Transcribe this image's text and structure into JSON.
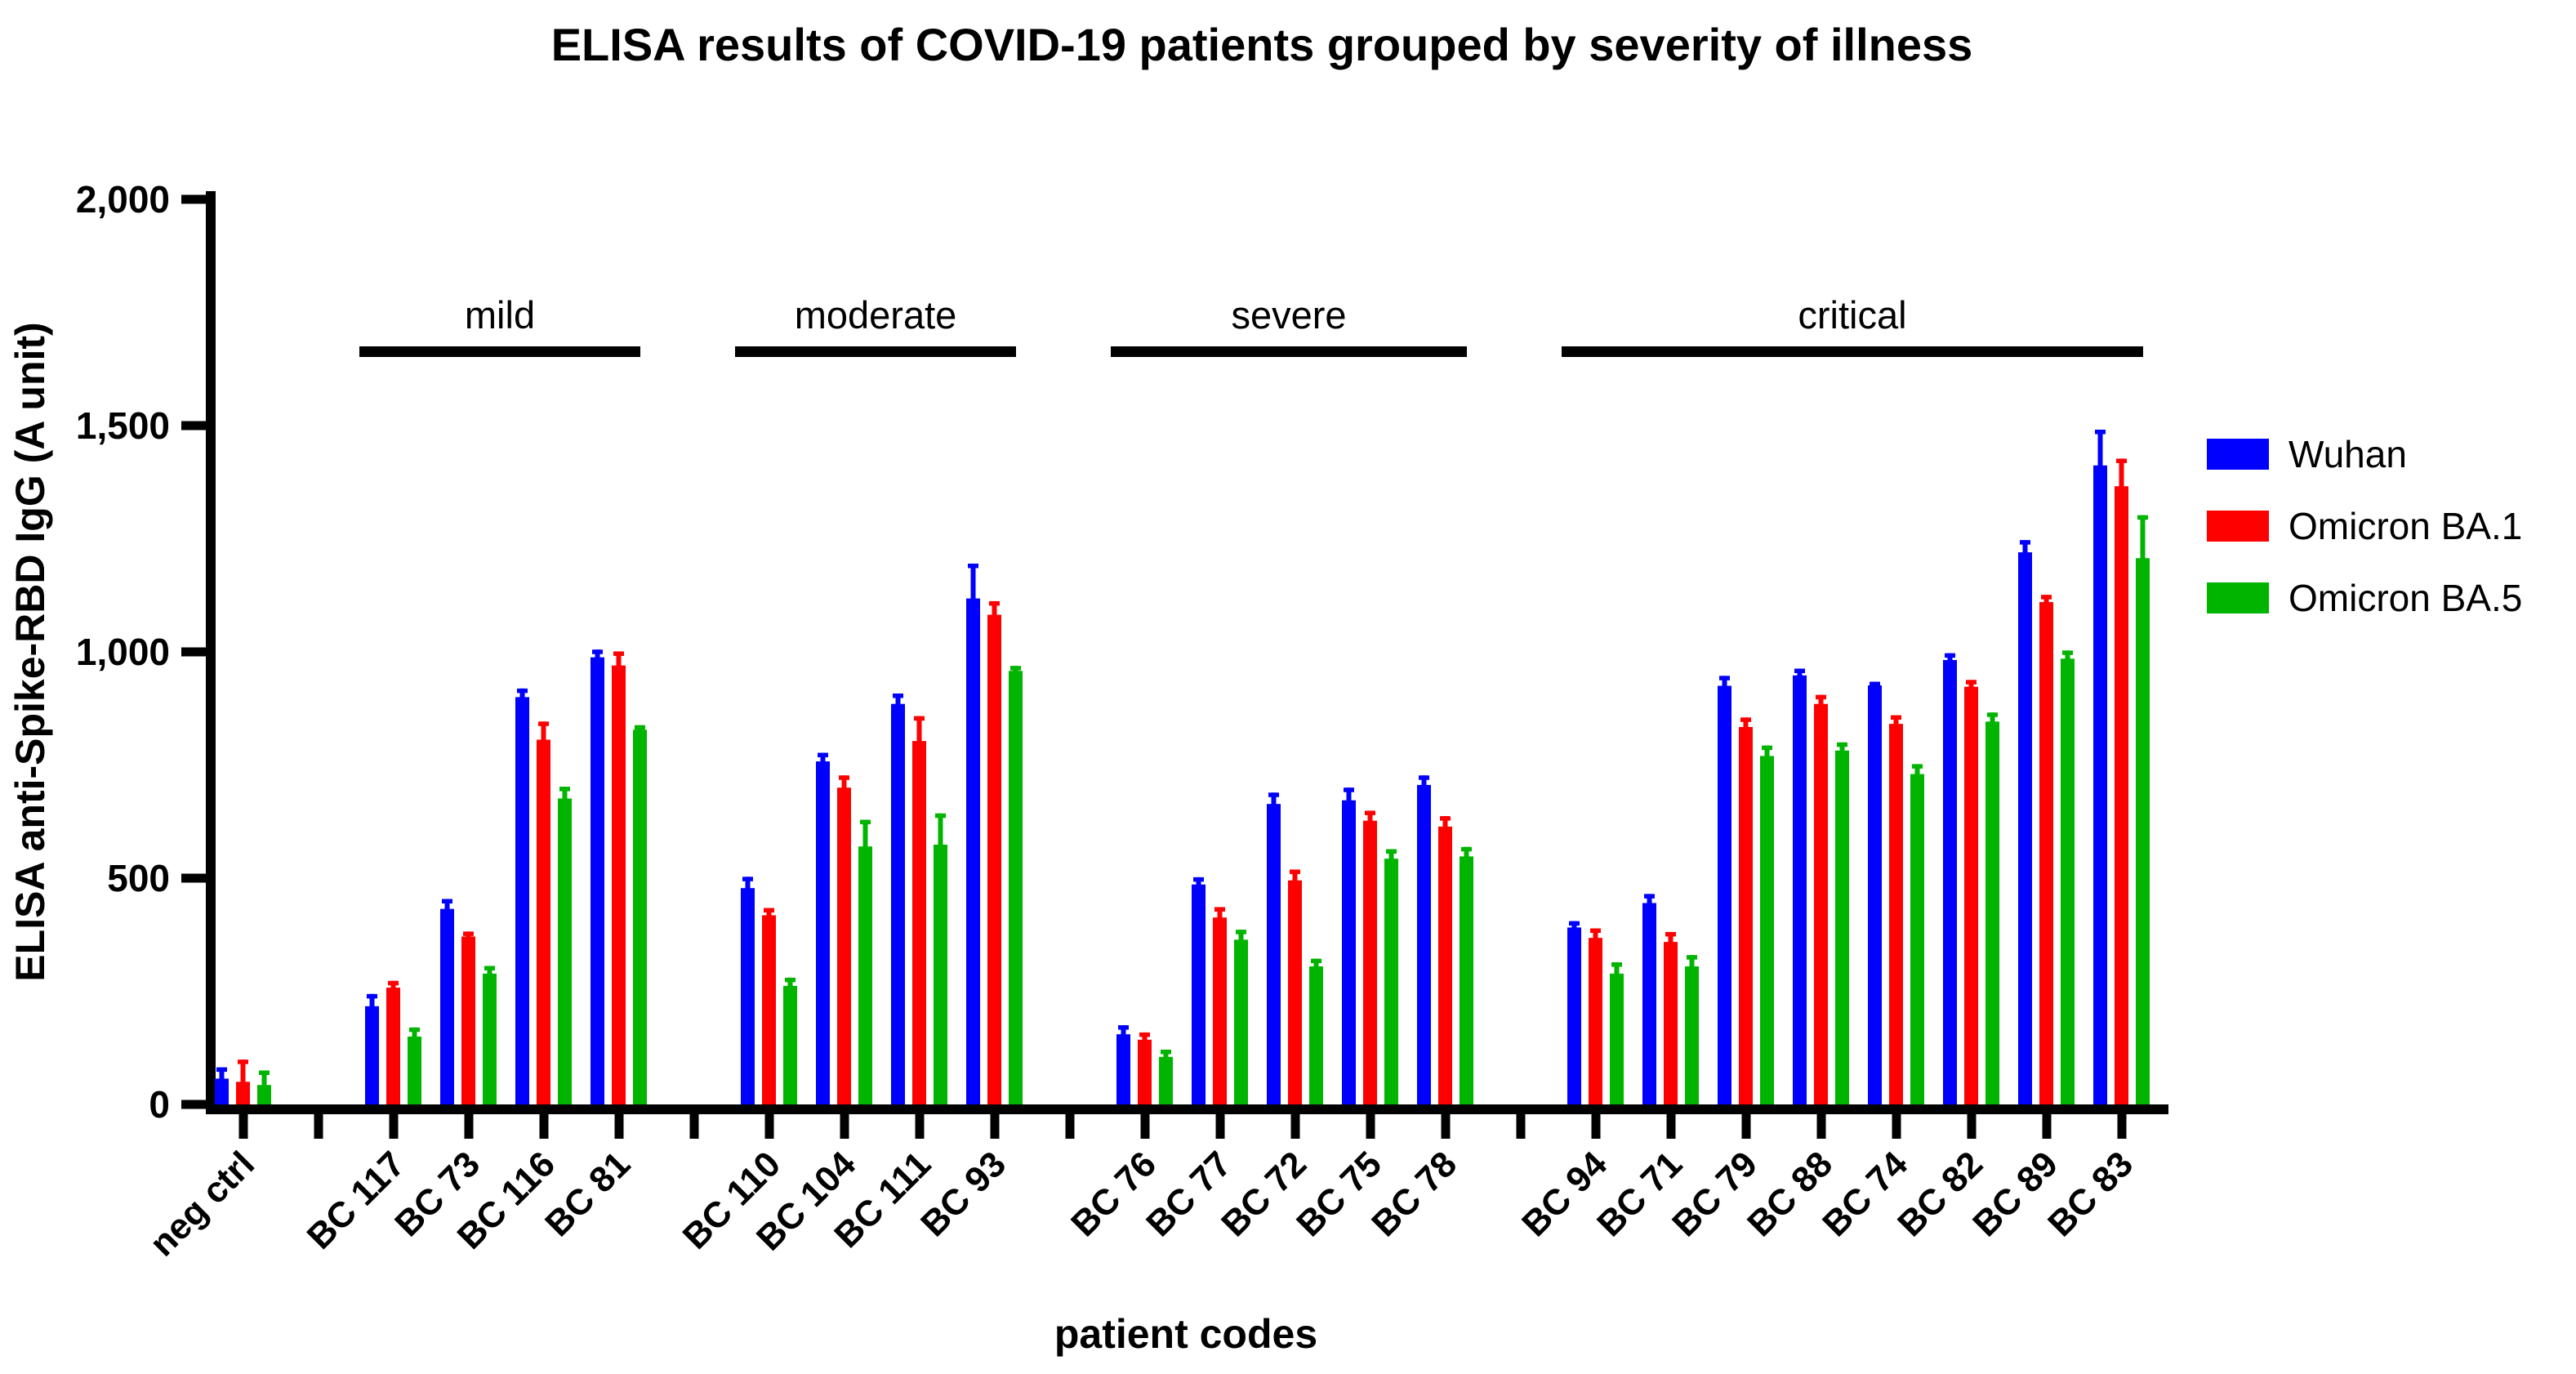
{
  "chart_data": {
    "type": "bar",
    "title": "ELISA results of COVID-19 patients grouped by severity of illness",
    "xlabel": "patient codes",
    "ylabel": "ELISA anti-Spike-RBD IgG (A unit)",
    "ylim": [
      0,
      2000
    ],
    "yticks": [
      {
        "value": 0,
        "label": "0"
      },
      {
        "value": 500,
        "label": "500"
      },
      {
        "value": 1000,
        "label": "1,000"
      },
      {
        "value": 1500,
        "label": "1,500"
      },
      {
        "value": 2000,
        "label": "2,000"
      }
    ],
    "grid": false,
    "legend_position": "right",
    "error_bars": "upper standard deviation whiskers",
    "series": [
      {
        "name": "Wuhan",
        "color": "#0000ff"
      },
      {
        "name": "Omicron BA.1",
        "color": "#ff0000"
      },
      {
        "name": "Omicron BA.5",
        "color": "#00b400"
      }
    ],
    "groups": [
      {
        "severity": null,
        "patients": [
          {
            "code": "neg ctrl",
            "values": [
              57,
              50,
              43
            ],
            "errors": [
              25,
              49,
              32
            ]
          }
        ]
      },
      {
        "severity": "mild",
        "patients": [
          {
            "code": "BC 117",
            "values": [
              217,
              258,
              150
            ],
            "errors": [
              27,
              15,
              20
            ]
          },
          {
            "code": "BC 73",
            "values": [
              432,
              371,
              289
            ],
            "errors": [
              22,
              11,
              17
            ]
          },
          {
            "code": "BC 116",
            "values": [
              900,
              806,
              676
            ],
            "errors": [
              19,
              40,
              26
            ]
          },
          {
            "code": "BC 81",
            "values": [
              988,
              970,
              828
            ],
            "errors": [
              17,
              31,
              10
            ]
          }
        ]
      },
      {
        "severity": "moderate",
        "patients": [
          {
            "code": "BC 110",
            "values": [
              478,
              418,
              262
            ],
            "errors": [
              25,
              16,
              18
            ]
          },
          {
            "code": "BC 104",
            "values": [
              758,
              700,
              570
            ],
            "errors": [
              19,
              27,
              59
            ]
          },
          {
            "code": "BC 111",
            "values": [
              885,
              803,
              574
            ],
            "errors": [
              23,
              55,
              69
            ]
          },
          {
            "code": "BC 93",
            "values": [
              1118,
              1082,
              958
            ],
            "errors": [
              77,
              30,
              11
            ]
          }
        ]
      },
      {
        "severity": "severe",
        "patients": [
          {
            "code": "BC 76",
            "values": [
              155,
              143,
              105
            ],
            "errors": [
              20,
              16,
              16
            ]
          },
          {
            "code": "BC 77",
            "values": [
              486,
              413,
              364
            ],
            "errors": [
              16,
              23,
              22
            ]
          },
          {
            "code": "BC 72",
            "values": [
              664,
              495,
              305
            ],
            "errors": [
              25,
              24,
              17
            ]
          },
          {
            "code": "BC 75",
            "values": [
              672,
              627,
              543
            ],
            "errors": [
              28,
              22,
              21
            ]
          },
          {
            "code": "BC 78",
            "values": [
              706,
              614,
              548
            ],
            "errors": [
              21,
              23,
              21
            ]
          }
        ]
      },
      {
        "severity": "critical",
        "patients": [
          {
            "code": "BC 94",
            "values": [
              391,
              368,
              289
            ],
            "errors": [
              14,
              21,
              25
            ]
          },
          {
            "code": "BC 71",
            "values": [
              445,
              359,
              305
            ],
            "errors": [
              20,
              22,
              25
            ]
          },
          {
            "code": "BC 79",
            "values": [
              925,
              834,
              770
            ],
            "errors": [
              22,
              21,
              23
            ]
          },
          {
            "code": "BC 88",
            "values": [
              948,
              885,
              782
            ],
            "errors": [
              15,
              20,
              18
            ]
          },
          {
            "code": "BC 74",
            "values": [
              926,
              841,
              730
            ],
            "errors": [
              8,
              19,
              22
            ]
          },
          {
            "code": "BC 82",
            "values": [
              982,
              923,
              846
            ],
            "errors": [
              15,
              15,
              20
            ]
          },
          {
            "code": "BC 89",
            "values": [
              1220,
              1110,
              985
            ],
            "errors": [
              27,
              16,
              18
            ]
          },
          {
            "code": "BC 83",
            "values": [
              1412,
              1366,
              1207
            ],
            "errors": [
              79,
              61,
              95
            ]
          }
        ]
      }
    ]
  }
}
